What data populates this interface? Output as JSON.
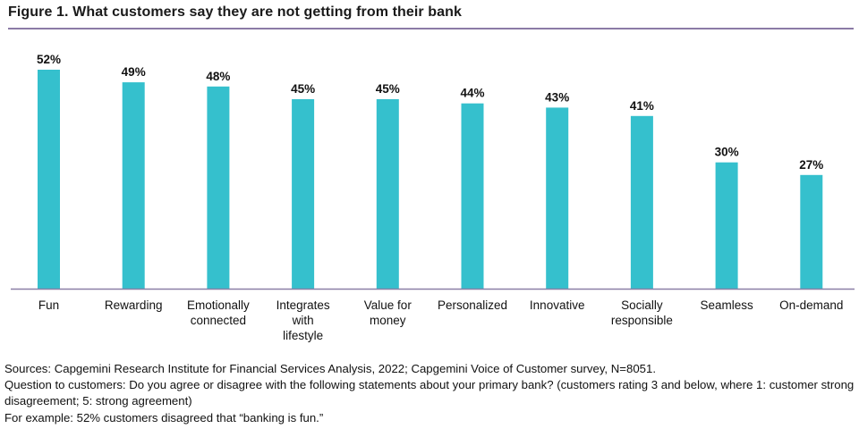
{
  "figure_title": "Figure 1. What customers say they are not getting from their bank",
  "chart_data": {
    "type": "bar",
    "title": "Figure 1. What customers say they are not getting from their bank",
    "categories": [
      [
        "Fun"
      ],
      [
        "Rewarding"
      ],
      [
        "Emotionally",
        "connected"
      ],
      [
        "Integrates",
        "with",
        "lifestyle"
      ],
      [
        "Value for",
        "money"
      ],
      [
        "Personalized"
      ],
      [
        "Innovative"
      ],
      [
        "Socially",
        "responsible"
      ],
      [
        "Seamless"
      ],
      [
        "On-demand"
      ]
    ],
    "values": [
      52,
      49,
      48,
      45,
      45,
      44,
      43,
      41,
      30,
      27
    ],
    "value_labels": [
      "52%",
      "49%",
      "48%",
      "45%",
      "45%",
      "44%",
      "43%",
      "41%",
      "30%",
      "27%"
    ],
    "ylim": [
      0,
      52
    ],
    "xlabel": "",
    "ylabel": "",
    "grid": false,
    "bar_color": "#35c0cd",
    "axis_color": "#8a7fa6"
  },
  "notes": {
    "sources": "Sources: Capgemini Research Institute for Financial Services Analysis, 2022; Capgemini Voice of Customer survey, N=8051.",
    "question": "Question to customers: Do you agree or disagree with the following statements about your primary bank? (customers rating 3 and below, where 1: customer strong disagreement; 5: strong agreement)",
    "example": "For example: 52% customers disagreed that “banking is fun.”"
  }
}
